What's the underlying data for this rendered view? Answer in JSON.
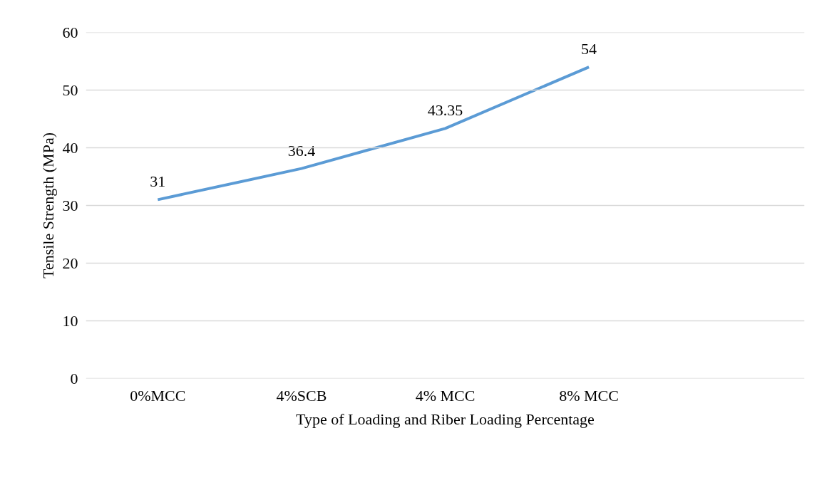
{
  "chart_data": {
    "type": "line",
    "xlabel": "Type of Loading and Riber Loading Percentage",
    "ylabel": "Tensile Strength (MPa)",
    "categories": [
      "0%MCC",
      "4%SCB",
      "4% MCC",
      "8% MCC",
      null
    ],
    "series": [
      {
        "color": "#5b9bd5",
        "values": [
          31,
          36.4,
          43.35,
          54,
          null
        ]
      }
    ],
    "ylim": [
      0,
      60
    ],
    "yticks": [
      0,
      10,
      20,
      30,
      40,
      50,
      60
    ],
    "grid": "y",
    "data_labels": true,
    "line_style": "solid"
  }
}
